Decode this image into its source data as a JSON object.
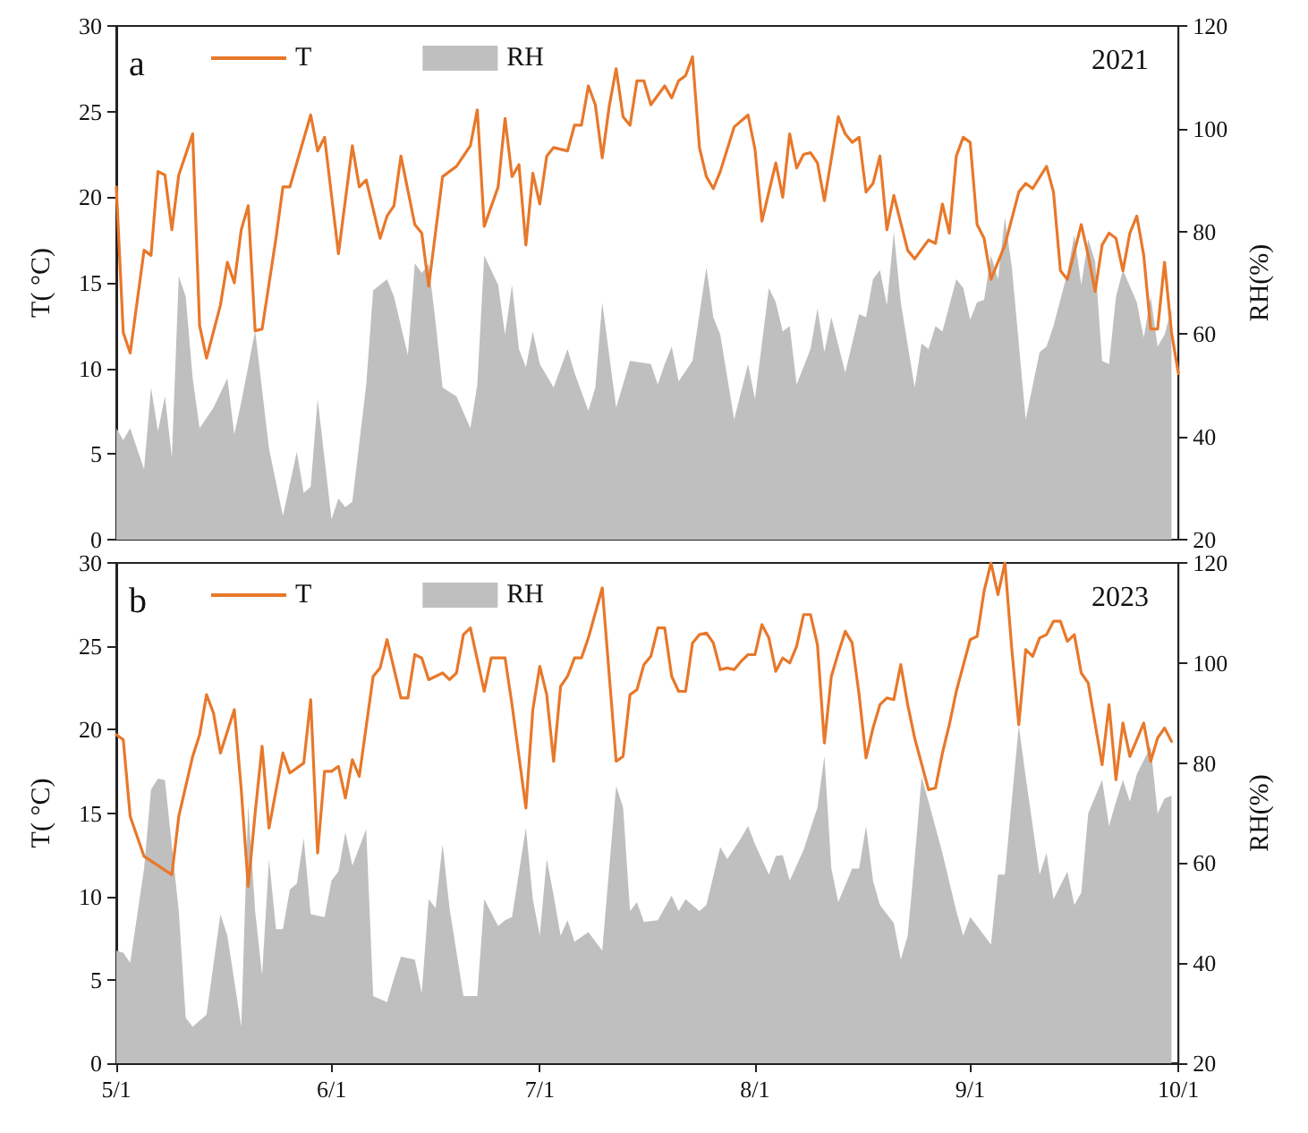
{
  "chart_data": [
    {
      "type": "line",
      "ylabel": "T( °C)",
      "y2label": "RH(%)",
      "annotations": [
        "a",
        "2021"
      ],
      "legend": "top left",
      "tick_labels": "y",
      "xlim": [
        "--05-01",
        "--10-01"
      ],
      "xticks": [
        {
          "value": "--05-01",
          "label": "5/1"
        },
        {
          "value": "--06-01",
          "label": "6/1"
        },
        {
          "value": "--07-01",
          "label": "7/1"
        },
        {
          "value": "--08-01",
          "label": "8/1"
        },
        {
          "value": "--09-01",
          "label": "9/1"
        },
        {
          "value": "--10-01",
          "label": "10/1"
        }
      ],
      "ylim": [
        0,
        30
      ],
      "yticks": [
        0,
        5,
        10,
        15,
        20,
        25,
        30
      ],
      "y2lim": [
        20,
        120
      ],
      "y2ticks": [
        20,
        40,
        60,
        80,
        100,
        120
      ],
      "series": [
        {
          "name": "RH",
          "type": "area",
          "axis": "y2",
          "color": "#bfbfbf",
          "x": [
            "--05-01",
            "--05-02",
            "--05-03",
            "--05-05",
            "--05-06",
            "--05-07",
            "--05-08",
            "--05-09",
            "--05-10",
            "--05-11",
            "--05-12",
            "--05-13",
            "--05-15",
            "--05-17",
            "--05-18",
            "--05-19",
            "--05-21",
            "--05-23",
            "--05-25",
            "--05-27",
            "--05-28",
            "--05-29",
            "--05-30",
            "--06-01",
            "--06-02",
            "--06-03",
            "--06-04",
            "--06-06",
            "--06-07",
            "--06-09",
            "--06-10",
            "--06-12",
            "--06-13",
            "--06-14",
            "--06-15",
            "--06-16",
            "--06-17",
            "--06-19",
            "--06-21",
            "--06-22",
            "--06-23",
            "--06-25",
            "--06-26",
            "--06-27",
            "--06-28",
            "--06-29",
            "--06-30",
            "--07-01",
            "--07-03",
            "--07-05",
            "--07-06",
            "--07-08",
            "--07-09",
            "--07-10",
            "--07-12",
            "--07-14",
            "--07-17",
            "--07-18",
            "--07-19",
            "--07-20",
            "--07-21",
            "--07-23",
            "--07-25",
            "--07-26",
            "--07-27",
            "--07-29",
            "--07-31",
            "--08-01",
            "--08-03",
            "--08-04",
            "--08-05",
            "--08-06",
            "--08-07",
            "--08-09",
            "--08-10",
            "--08-11",
            "--08-12",
            "--08-14",
            "--08-16",
            "--08-17",
            "--08-18",
            "--08-19",
            "--08-20",
            "--08-21",
            "--08-22",
            "--08-24",
            "--08-25",
            "--08-26",
            "--08-27",
            "--08-28",
            "--08-30",
            "--08-31",
            "--09-01",
            "--09-02",
            "--09-03",
            "--09-04",
            "--09-05",
            "--09-06",
            "--09-07",
            "--09-09",
            "--09-11",
            "--09-12",
            "--09-13",
            "--09-15",
            "--09-16",
            "--09-17",
            "--09-18",
            "--09-19",
            "--09-20",
            "--09-21",
            "--09-22",
            "--09-23",
            "--09-25",
            "--09-26",
            "--09-27",
            "--09-28",
            "--09-29",
            "--09-30"
          ],
          "values": [
            41.7,
            39.4,
            41.7,
            33.7,
            49.6,
            41.1,
            47.9,
            36.0,
            71.3,
            67.3,
            51.4,
            41.7,
            45.7,
            51.4,
            40.5,
            46.8,
            60.7,
            37.7,
            24.6,
            37.1,
            29.1,
            30.3,
            47.4,
            24.0,
            28.0,
            26.3,
            27.4,
            50.2,
            68.5,
            70.7,
            67.3,
            55.9,
            73.8,
            71.9,
            73.6,
            62.2,
            49.6,
            47.9,
            41.7,
            50.2,
            75.3,
            69.6,
            59.9,
            69.6,
            57.1,
            53.6,
            60.5,
            54.2,
            49.6,
            57.1,
            52.5,
            45.1,
            49.6,
            66.2,
            45.7,
            54.8,
            54.2,
            50.2,
            54.2,
            57.6,
            50.8,
            54.8,
            73.0,
            63.3,
            59.9,
            43.4,
            54.2,
            47.4,
            69.0,
            66.2,
            60.5,
            61.6,
            50.2,
            57.1,
            65.0,
            56.5,
            63.3,
            52.5,
            63.9,
            63.3,
            70.7,
            72.5,
            65.6,
            79.9,
            66.2,
            49.6,
            58.2,
            57.1,
            61.6,
            60.5,
            70.7,
            69.0,
            62.8,
            66.2,
            66.7,
            75.3,
            70.7,
            82.7,
            73.0,
            43.4,
            56.5,
            57.6,
            61.6,
            71.9,
            79.3,
            69.6,
            78.5,
            74.2,
            54.8,
            54.2,
            67.3,
            72.5,
            66.2,
            59.3,
            67.3,
            57.6,
            59.9,
            65.0
          ]
        },
        {
          "name": "T",
          "type": "line",
          "color": "#e8782a",
          "x": [
            "--05-01",
            "--05-02",
            "--05-03",
            "--05-05",
            "--05-06",
            "--05-07",
            "--05-08",
            "--05-09",
            "--05-10",
            "--05-12",
            "--05-13",
            "--05-14",
            "--05-16",
            "--05-17",
            "--05-18",
            "--05-19",
            "--05-20",
            "--05-21",
            "--05-22",
            "--05-24",
            "--05-25",
            "--05-26",
            "--05-27",
            "--05-29",
            "--05-30",
            "--05-31",
            "--06-02",
            "--06-04",
            "--06-05",
            "--06-06",
            "--06-08",
            "--06-09",
            "--06-10",
            "--06-11",
            "--06-13",
            "--06-14",
            "--06-15",
            "--06-17",
            "--06-19",
            "--06-21",
            "--06-22",
            "--06-23",
            "--06-25",
            "--06-26",
            "--06-27",
            "--06-28",
            "--06-29",
            "--06-30",
            "--07-01",
            "--07-02",
            "--07-03",
            "--07-05",
            "--07-06",
            "--07-07",
            "--07-08",
            "--07-09",
            "--07-10",
            "--07-11",
            "--07-12",
            "--07-13",
            "--07-14",
            "--07-15",
            "--07-16",
            "--07-17",
            "--07-19",
            "--07-20",
            "--07-21",
            "--07-22",
            "--07-23",
            "--07-24",
            "--07-25",
            "--07-26",
            "--07-27",
            "--07-29",
            "--07-31",
            "--08-01",
            "--08-02",
            "--08-04",
            "--08-05",
            "--08-06",
            "--08-07",
            "--08-08",
            "--08-09",
            "--08-10",
            "--08-11",
            "--08-13",
            "--08-14",
            "--08-15",
            "--08-16",
            "--08-17",
            "--08-18",
            "--08-19",
            "--08-20",
            "--08-21",
            "--08-23",
            "--08-24",
            "--08-26",
            "--08-27",
            "--08-28",
            "--08-29",
            "--08-30",
            "--08-31",
            "--09-01",
            "--09-02",
            "--09-03",
            "--09-04",
            "--09-06",
            "--09-08",
            "--09-09",
            "--09-10",
            "--09-12",
            "--09-13",
            "--09-14",
            "--09-15",
            "--09-17",
            "--09-18",
            "--09-19",
            "--09-20",
            "--09-21",
            "--09-22",
            "--09-23",
            "--09-24",
            "--09-25",
            "--09-26",
            "--09-27",
            "--09-28",
            "--09-29",
            "--09-30",
            "--10-01"
          ],
          "values": [
            20.6,
            12.1,
            10.9,
            16.9,
            16.6,
            21.5,
            21.3,
            18.1,
            21.3,
            23.7,
            12.5,
            10.6,
            13.7,
            16.2,
            15.0,
            18.1,
            19.5,
            12.2,
            12.3,
            17.6,
            20.6,
            20.6,
            22.0,
            24.8,
            22.7,
            23.5,
            16.7,
            23.0,
            20.6,
            21.0,
            17.6,
            18.9,
            19.5,
            22.4,
            18.4,
            17.9,
            14.8,
            21.2,
            21.8,
            23.0,
            25.1,
            18.3,
            20.6,
            24.6,
            21.2,
            21.9,
            17.2,
            21.4,
            19.6,
            22.4,
            22.9,
            22.7,
            24.2,
            24.2,
            26.5,
            25.4,
            22.3,
            25.3,
            27.5,
            24.7,
            24.2,
            26.8,
            26.8,
            25.4,
            26.5,
            25.8,
            26.8,
            27.1,
            28.2,
            22.9,
            21.2,
            20.5,
            21.5,
            24.1,
            24.8,
            22.8,
            18.6,
            22.0,
            20.0,
            23.7,
            21.7,
            22.5,
            22.6,
            22.0,
            19.8,
            24.7,
            23.7,
            23.2,
            23.5,
            20.3,
            20.8,
            22.4,
            18.1,
            20.1,
            16.9,
            16.4,
            17.5,
            17.3,
            19.6,
            17.9,
            22.4,
            23.5,
            23.2,
            18.4,
            17.6,
            15.2,
            17.2,
            20.3,
            20.8,
            20.5,
            21.8,
            20.3,
            15.7,
            15.2,
            18.4,
            16.6,
            14.5,
            17.2,
            17.9,
            17.6,
            15.7,
            17.9,
            18.9,
            16.6,
            12.3,
            12.3,
            16.2,
            12.1,
            9.7
          ]
        }
      ]
    },
    {
      "type": "line",
      "ylabel": "T( °C)",
      "y2label": "RH(%)",
      "annotations": [
        "b",
        "2023"
      ],
      "legend": "top left",
      "xlim": [
        "--05-01",
        "--10-01"
      ],
      "xticks": [
        {
          "value": "--05-01",
          "label": "5/1"
        },
        {
          "value": "--06-01",
          "label": "6/1"
        },
        {
          "value": "--07-01",
          "label": "7/1"
        },
        {
          "value": "--08-01",
          "label": "8/1"
        },
        {
          "value": "--09-01",
          "label": "9/1"
        },
        {
          "value": "--10-01",
          "label": "10/1"
        }
      ],
      "ylim": [
        0,
        30
      ],
      "yticks": [
        0,
        5,
        10,
        15,
        20,
        25,
        30
      ],
      "y2lim": [
        20,
        120
      ],
      "y2ticks": [
        20,
        40,
        60,
        80,
        100,
        120
      ],
      "series": [
        {
          "name": "RH",
          "type": "area",
          "axis": "y2",
          "color": "#bfbfbf",
          "x": [
            "--05-01",
            "--05-02",
            "--05-03",
            "--05-05",
            "--05-06",
            "--05-07",
            "--05-08",
            "--05-10",
            "--05-11",
            "--05-12",
            "--05-14",
            "--05-16",
            "--05-17",
            "--05-19",
            "--05-20",
            "--05-21",
            "--05-22",
            "--05-23",
            "--05-24",
            "--05-25",
            "--05-26",
            "--05-27",
            "--05-28",
            "--05-29",
            "--05-31",
            "--06-01",
            "--06-02",
            "--06-03",
            "--06-04",
            "--06-06",
            "--06-07",
            "--06-09",
            "--06-10",
            "--06-11",
            "--06-13",
            "--06-14",
            "--06-15",
            "--06-16",
            "--06-17",
            "--06-18",
            "--06-20",
            "--06-22",
            "--06-23",
            "--06-25",
            "--06-26",
            "--06-27",
            "--06-29",
            "--06-30",
            "--07-01",
            "--07-02",
            "--07-03",
            "--07-04",
            "--07-05",
            "--07-06",
            "--07-08",
            "--07-10",
            "--07-12",
            "--07-13",
            "--07-14",
            "--07-15",
            "--07-16",
            "--07-18",
            "--07-20",
            "--07-21",
            "--07-22",
            "--07-24",
            "--07-25",
            "--07-27",
            "--07-28",
            "--07-30",
            "--07-31",
            "--08-01",
            "--08-03",
            "--08-04",
            "--08-05",
            "--08-06",
            "--08-08",
            "--08-10",
            "--08-11",
            "--08-12",
            "--08-13",
            "--08-15",
            "--08-16",
            "--08-17",
            "--08-18",
            "--08-19",
            "--08-21",
            "--08-22",
            "--08-23",
            "--08-24",
            "--08-25",
            "--08-26",
            "--08-28",
            "--08-30",
            "--08-31",
            "--09-01",
            "--09-02",
            "--09-04",
            "--09-05",
            "--09-06",
            "--09-08",
            "--09-09",
            "--09-11",
            "--09-12",
            "--09-13",
            "--09-15",
            "--09-16",
            "--09-17",
            "--09-18",
            "--09-20",
            "--09-21",
            "--09-22",
            "--09-23",
            "--09-24",
            "--09-25",
            "--09-27",
            "--09-28",
            "--09-29",
            "--09-30"
          ],
          "values": [
            42.5,
            42.1,
            40.1,
            58.9,
            74.7,
            76.9,
            76.6,
            50.4,
            29.1,
            27.3,
            29.7,
            49.8,
            45.5,
            27.3,
            71.7,
            50.4,
            37.6,
            60.8,
            46.8,
            46.8,
            54.7,
            55.9,
            65.0,
            49.8,
            49.2,
            56.5,
            58.3,
            66.2,
            59.5,
            66.8,
            33.4,
            32.2,
            37.0,
            41.3,
            40.7,
            34.0,
            52.8,
            51.0,
            63.8,
            51.0,
            33.4,
            33.4,
            52.8,
            47.4,
            48.6,
            49.2,
            67.1,
            52.8,
            45.5,
            60.8,
            53.5,
            45.5,
            48.6,
            44.3,
            46.2,
            42.5,
            75.4,
            71.1,
            50.4,
            52.2,
            48.2,
            48.6,
            53.5,
            50.4,
            52.8,
            50.4,
            51.6,
            63.2,
            60.8,
            65.0,
            67.4,
            63.8,
            57.7,
            61.4,
            61.6,
            56.5,
            62.6,
            71.1,
            81.4,
            58.9,
            52.2,
            58.9,
            58.9,
            67.4,
            56.5,
            51.6,
            48.0,
            40.7,
            45.5,
            60.8,
            77.2,
            72.3,
            62.0,
            50.4,
            45.5,
            49.2,
            47.4,
            43.7,
            57.7,
            57.7,
            87.5,
            77.2,
            57.7,
            62.0,
            52.8,
            58.3,
            51.6,
            54.1,
            69.9,
            76.6,
            67.4,
            72.3,
            76.6,
            72.3,
            77.8,
            83.3,
            69.9,
            72.9,
            73.5
          ]
        },
        {
          "name": "T",
          "type": "line",
          "color": "#e8782a",
          "x": [
            "--05-01",
            "--05-02",
            "--05-03",
            "--05-05",
            "--05-09",
            "--05-10",
            "--05-12",
            "--05-13",
            "--05-14",
            "--05-15",
            "--05-16",
            "--05-18",
            "--05-19",
            "--05-20",
            "--05-21",
            "--05-22",
            "--05-23",
            "--05-25",
            "--05-26",
            "--05-28",
            "--05-29",
            "--05-30",
            "--05-31",
            "--06-01",
            "--06-02",
            "--06-03",
            "--06-04",
            "--06-05",
            "--06-07",
            "--06-08",
            "--06-09",
            "--06-11",
            "--06-12",
            "--06-13",
            "--06-14",
            "--06-15",
            "--06-17",
            "--06-18",
            "--06-19",
            "--06-20",
            "--06-21",
            "--06-23",
            "--06-24",
            "--06-26",
            "--06-27",
            "--06-29",
            "--06-30",
            "--07-01",
            "--07-02",
            "--07-03",
            "--07-04",
            "--07-05",
            "--07-06",
            "--07-07",
            "--07-08",
            "--07-10",
            "--07-12",
            "--07-13",
            "--07-14",
            "--07-15",
            "--07-16",
            "--07-17",
            "--07-18",
            "--07-19",
            "--07-20",
            "--07-21",
            "--07-22",
            "--07-23",
            "--07-24",
            "--07-25",
            "--07-26",
            "--07-27",
            "--07-28",
            "--07-29",
            "--07-30",
            "--07-31",
            "--08-01",
            "--08-02",
            "--08-03",
            "--08-04",
            "--08-05",
            "--08-06",
            "--08-07",
            "--08-08",
            "--08-09",
            "--08-10",
            "--08-11",
            "--08-12",
            "--08-13",
            "--08-14",
            "--08-15",
            "--08-16",
            "--08-17",
            "--08-18",
            "--08-19",
            "--08-20",
            "--08-21",
            "--08-22",
            "--08-23",
            "--08-24",
            "--08-26",
            "--08-27",
            "--08-28",
            "--08-29",
            "--08-30",
            "--09-01",
            "--09-02",
            "--09-03",
            "--09-04",
            "--09-05",
            "--09-06",
            "--09-07",
            "--09-08",
            "--09-09",
            "--09-10",
            "--09-11",
            "--09-12",
            "--09-13",
            "--09-14",
            "--09-15",
            "--09-16",
            "--09-17",
            "--09-18",
            "--09-20",
            "--09-21",
            "--09-22",
            "--09-23",
            "--09-24",
            "--09-25",
            "--09-26",
            "--09-27",
            "--09-28",
            "--09-29",
            "--09-30"
          ],
          "values": [
            19.7,
            19.4,
            14.8,
            12.4,
            11.3,
            14.8,
            18.4,
            19.7,
            22.1,
            21.0,
            18.6,
            21.2,
            16.4,
            10.6,
            15.0,
            19.0,
            14.1,
            18.6,
            17.4,
            18.0,
            21.8,
            12.6,
            17.5,
            17.5,
            17.8,
            15.9,
            18.2,
            17.2,
            23.2,
            23.7,
            25.4,
            21.9,
            21.9,
            24.5,
            24.3,
            23.0,
            23.4,
            23.0,
            23.4,
            25.7,
            26.1,
            22.3,
            24.3,
            24.3,
            21.5,
            15.3,
            21.2,
            23.8,
            22.1,
            18.1,
            22.6,
            23.2,
            24.3,
            24.3,
            25.5,
            28.5,
            18.1,
            18.4,
            22.1,
            22.4,
            23.9,
            24.4,
            26.1,
            26.1,
            23.2,
            22.3,
            22.3,
            25.2,
            25.7,
            25.8,
            25.2,
            23.6,
            23.7,
            23.6,
            24.1,
            24.5,
            24.5,
            26.3,
            25.5,
            23.5,
            24.3,
            24.0,
            25.0,
            26.9,
            26.9,
            25.1,
            19.2,
            23.2,
            24.6,
            25.9,
            25.2,
            22.1,
            18.3,
            20.1,
            21.5,
            21.9,
            21.8,
            23.9,
            21.5,
            19.5,
            16.4,
            16.5,
            18.6,
            20.3,
            22.3,
            25.4,
            25.6,
            28.3,
            30.0,
            28.1,
            30.0,
            24.8,
            20.3,
            24.8,
            24.4,
            25.5,
            25.7,
            26.5,
            26.5,
            25.3,
            25.7,
            23.4,
            22.8,
            17.9,
            21.5,
            17.0,
            20.4,
            18.4,
            19.4,
            20.4,
            18.1,
            19.5,
            20.1,
            19.3
          ]
        }
      ]
    }
  ]
}
